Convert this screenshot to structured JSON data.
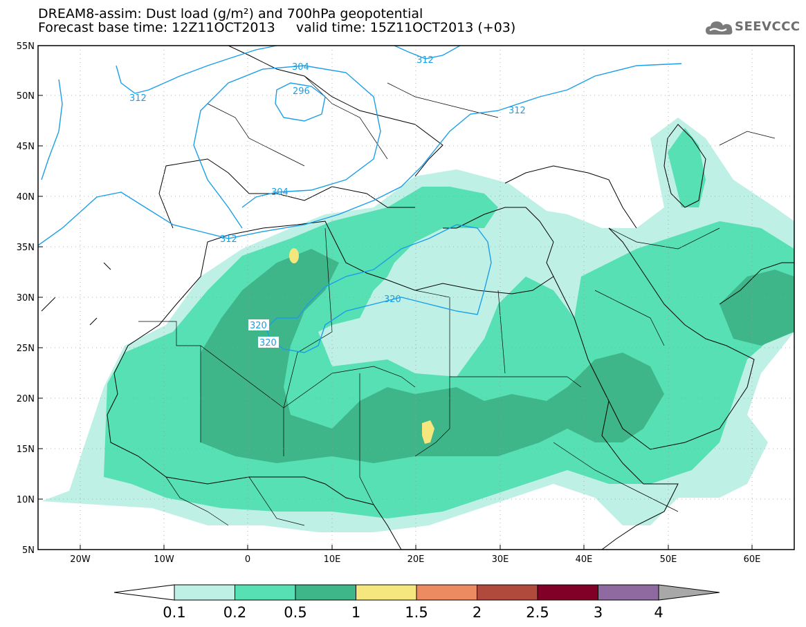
{
  "title": {
    "line1": "DREAM8-assim: Dust load (g/m²) and 700hPa geopotential",
    "line2": "Forecast base time: 12Z11OCT2013     valid time: 15Z11OCT2013 (+03)"
  },
  "logo": {
    "text": "SEEVCCC",
    "icon": "cloud-icon"
  },
  "map": {
    "extent": {
      "lon_min": -25,
      "lon_max": 65,
      "lat_min": 5,
      "lat_max": 55
    },
    "lat_labels": [
      "55N",
      "50N",
      "45N",
      "40N",
      "35N",
      "30N",
      "25N",
      "20N",
      "15N",
      "10N",
      "5N"
    ],
    "lon_labels": [
      "20W",
      "10W",
      "0",
      "10E",
      "20E",
      "30E",
      "40E",
      "50E",
      "60E"
    ],
    "contour_color": "#1a9ee8",
    "contour_labels": [
      "312",
      "304",
      "296",
      "312",
      "304",
      "312",
      "312",
      "320",
      "320",
      "320"
    ]
  },
  "colorbar": {
    "labels": [
      "0.1",
      "0.2",
      "0.5",
      "1",
      "1.5",
      "2",
      "2.5",
      "3",
      "4"
    ],
    "colors": [
      "#bff0e6",
      "#56e0b4",
      "#3fb58a",
      "#f5e77e",
      "#ec8a62",
      "#b04a3c",
      "#800028",
      "#8e6aa0"
    ],
    "over_color": "#a8a8a8"
  }
}
